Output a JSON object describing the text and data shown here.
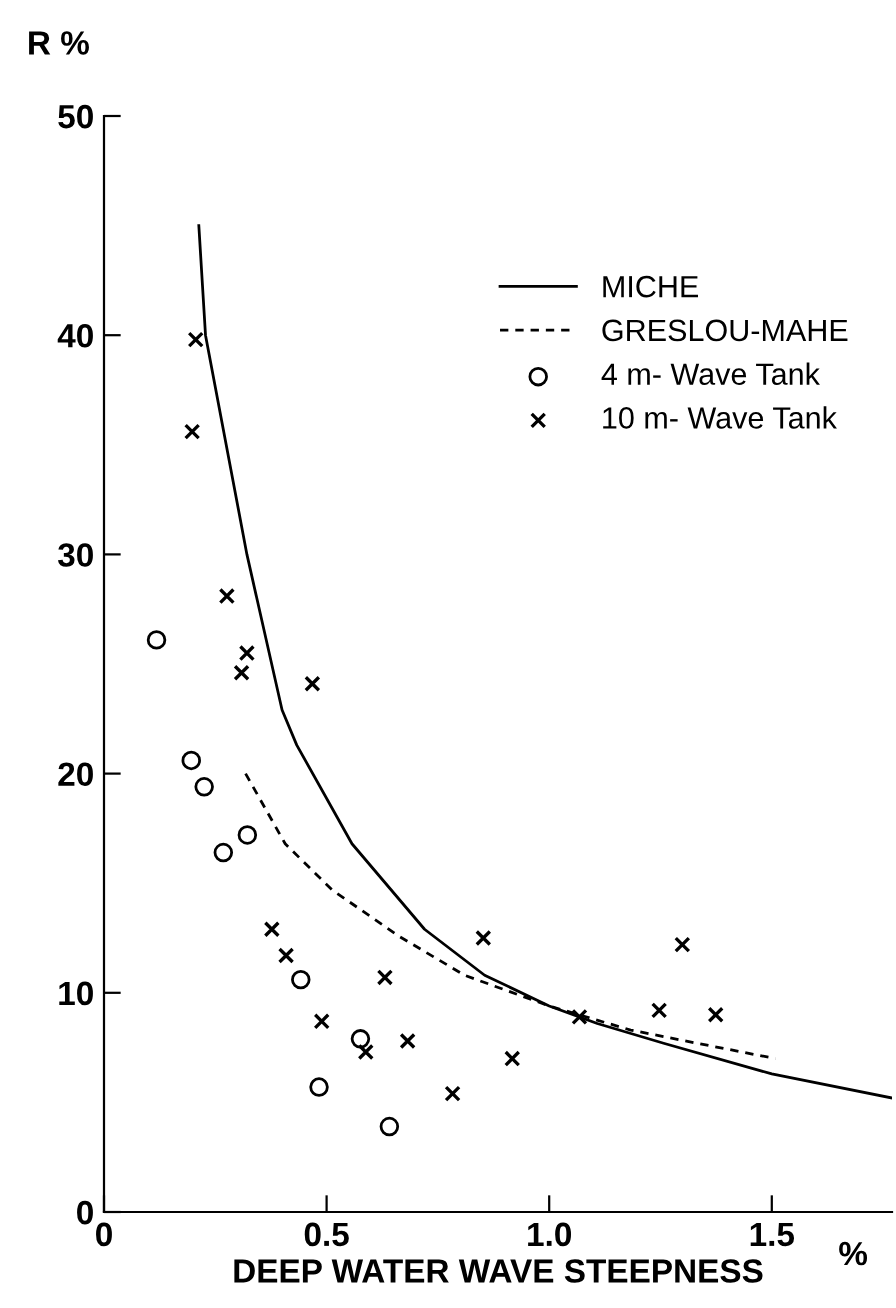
{
  "chart_data": {
    "type": "scatter",
    "ylabel": "R %",
    "xlabel": "DEEP WATER WAVE STEEPNESS",
    "annotations": [
      "%"
    ],
    "xlim": [
      0,
      1.77
    ],
    "ylim": [
      0,
      50
    ],
    "xticks": [
      0,
      {
        "value": 0.5,
        "label": "0.5"
      },
      {
        "value": 1.0,
        "label": "1.0"
      },
      {
        "value": 1.5,
        "label": "1.5"
      }
    ],
    "yticks": [
      0,
      10,
      20,
      30,
      40,
      50
    ],
    "grid": false,
    "legend": "top right",
    "series": [
      {
        "name": "MICHE",
        "type": "line",
        "line_style": "solid",
        "marker": "none",
        "color": "#000000",
        "x": [
          0.213,
          0.228,
          0.321,
          0.4,
          0.433,
          0.557,
          0.72,
          0.855,
          1.0,
          1.108,
          1.257,
          1.5,
          1.77
        ],
        "values": [
          45.0,
          40.0,
          30.0,
          22.9,
          21.3,
          16.8,
          12.9,
          10.8,
          9.4,
          8.6,
          7.7,
          6.3,
          5.2
        ]
      },
      {
        "name": "GRESLOU-MAHE",
        "type": "line",
        "line_style": "dashed",
        "marker": "none",
        "color": "#000000",
        "x": [
          0.318,
          0.407,
          0.512,
          0.661,
          0.81,
          1.0,
          1.183,
          1.332,
          1.508
        ],
        "values": [
          20.0,
          16.8,
          14.7,
          12.6,
          10.8,
          9.4,
          8.3,
          7.7,
          7.0
        ]
      },
      {
        "name": "4 m- Wave Tank",
        "marker": "circle",
        "color": "#000000",
        "x": [
          0.118,
          0.196,
          0.225,
          0.268,
          0.322,
          0.442,
          0.483,
          0.576,
          0.641
        ],
        "values": [
          26.1,
          20.6,
          19.4,
          16.4,
          17.2,
          10.6,
          5.7,
          7.9,
          3.9
        ]
      },
      {
        "name": "10 m- Wave Tank",
        "marker": "cross",
        "color": "#000000",
        "x": [
          0.206,
          0.198,
          0.276,
          0.321,
          0.309,
          0.468,
          0.377,
          0.409,
          0.631,
          0.489,
          0.588,
          0.682,
          0.783,
          0.917,
          0.852,
          1.068,
          1.247,
          1.374,
          1.299
        ],
        "values": [
          39.8,
          35.6,
          28.1,
          25.5,
          24.6,
          24.1,
          12.9,
          11.7,
          10.7,
          8.7,
          7.3,
          7.8,
          5.4,
          7.0,
          12.5,
          8.9,
          9.2,
          9.0,
          12.2
        ]
      }
    ]
  }
}
